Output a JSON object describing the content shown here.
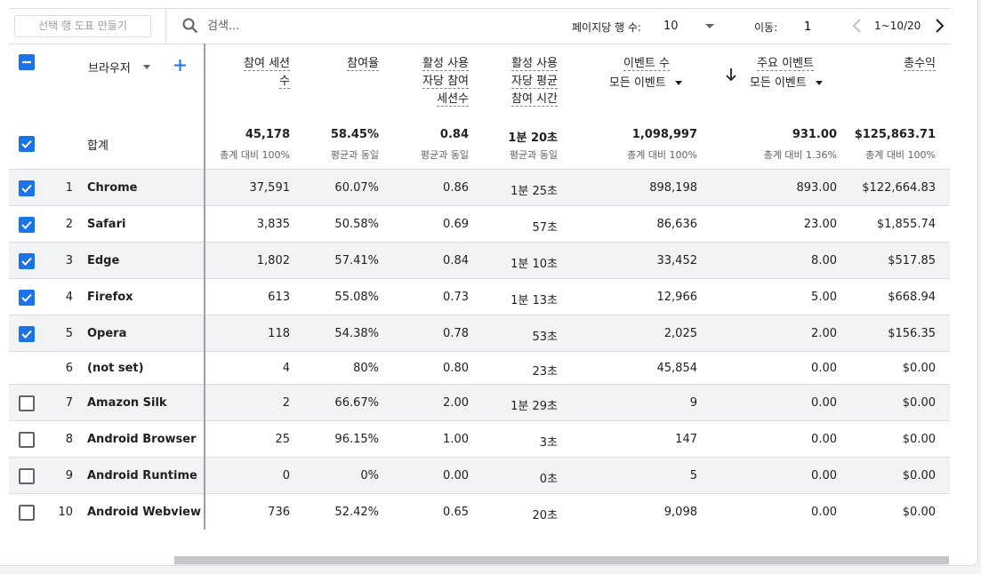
{
  "toolbar": {
    "chart_button": "선택 행 도표 만들기",
    "search_placeholder": "검색...",
    "rows_per_page_label": "페이지당 행 수:",
    "rows_per_page": "10",
    "goto_label": "이동:",
    "goto_value": "1",
    "page_range": "1~10/20"
  },
  "header": {
    "dimension": "브라우저",
    "col1": [
      "참여 세션",
      "수"
    ],
    "col2": [
      "참여율"
    ],
    "col3": [
      "활성 사용",
      "자당 참여",
      "세션수"
    ],
    "col4": [
      "활성 사용",
      "자당 평균",
      "참여 시간"
    ],
    "col5": "이벤트 수",
    "col5_filter": "모든 이벤트",
    "col6": "주요 이벤트",
    "col6_filter": "모든 이벤트",
    "col7": "총수익"
  },
  "totals": {
    "label": "합계",
    "values": [
      "45,178",
      "58.45%",
      "0.84",
      "1분 20초",
      "1,098,997",
      "931.00",
      "$125,863.71"
    ],
    "subs": [
      "총계 대비 100%",
      "평균과 동일",
      "평균과 동일",
      "평균과 동일",
      "총계 대비 100%",
      "총계 대비 1.36%",
      "총계 대비 100%"
    ]
  },
  "rows": [
    {
      "idx": "1",
      "name": "Chrome",
      "v": [
        "37,591",
        "60.07%",
        "0.86",
        "1분 25초",
        "898,198",
        "893.00",
        "$122,664.83"
      ],
      "checked": true
    },
    {
      "idx": "2",
      "name": "Safari",
      "v": [
        "3,835",
        "50.58%",
        "0.69",
        "57초",
        "86,636",
        "23.00",
        "$1,855.74"
      ],
      "checked": true
    },
    {
      "idx": "3",
      "name": "Edge",
      "v": [
        "1,802",
        "57.41%",
        "0.84",
        "1분 10초",
        "33,452",
        "8.00",
        "$517.85"
      ],
      "checked": true
    },
    {
      "idx": "4",
      "name": "Firefox",
      "v": [
        "613",
        "55.08%",
        "0.73",
        "1분 13초",
        "12,966",
        "5.00",
        "$668.94"
      ],
      "checked": true
    },
    {
      "idx": "5",
      "name": "Opera",
      "v": [
        "118",
        "54.38%",
        "0.78",
        "53초",
        "2,025",
        "2.00",
        "$156.35"
      ],
      "checked": true
    },
    {
      "idx": "6",
      "name": "(not set)",
      "v": [
        "4",
        "80%",
        "0.80",
        "23초",
        "45,854",
        "0.00",
        "$0.00"
      ],
      "checked": null
    },
    {
      "idx": "7",
      "name": "Amazon Silk",
      "v": [
        "2",
        "66.67%",
        "2.00",
        "1분 29초",
        "9",
        "0.00",
        "$0.00"
      ],
      "checked": false
    },
    {
      "idx": "8",
      "name": "Android Browser",
      "v": [
        "25",
        "96.15%",
        "1.00",
        "3초",
        "147",
        "0.00",
        "$0.00"
      ],
      "checked": false
    },
    {
      "idx": "9",
      "name": "Android Runtime",
      "v": [
        "0",
        "0%",
        "0.00",
        "0초",
        "5",
        "0.00",
        "$0.00"
      ],
      "checked": false
    },
    {
      "idx": "10",
      "name": "Android Webview",
      "v": [
        "736",
        "52.42%",
        "0.65",
        "20초",
        "9,098",
        "0.00",
        "$0.00"
      ],
      "checked": false
    }
  ]
}
